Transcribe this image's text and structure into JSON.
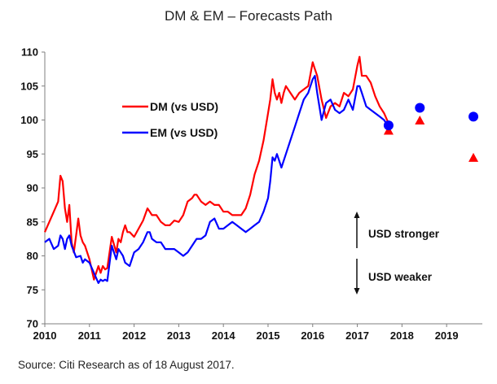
{
  "chart_data": {
    "type": "line",
    "title": "DM & EM – Forecasts Path",
    "xlabel": "",
    "ylabel": "",
    "xlim": [
      2010,
      2019.8
    ],
    "ylim": [
      70,
      110
    ],
    "x_ticks": [
      "2010",
      "2011",
      "2012",
      "2013",
      "2014",
      "2015",
      "2016",
      "2017",
      "2018",
      "2019"
    ],
    "y_ticks": [
      "70",
      "75",
      "80",
      "85",
      "90",
      "95",
      "100",
      "105",
      "110"
    ],
    "grid": false,
    "legend_position": "upper-left",
    "colors": {
      "dm": "#ff0000",
      "em": "#0000ff"
    },
    "series": [
      {
        "name": "DM (vs USD)",
        "color": "#ff0000",
        "x": [
          2010.0,
          2010.1,
          2010.2,
          2010.3,
          2010.35,
          2010.4,
          2010.45,
          2010.5,
          2010.55,
          2010.6,
          2010.65,
          2010.7,
          2010.75,
          2010.8,
          2010.85,
          2010.9,
          2011.0,
          2011.1,
          2011.2,
          2011.25,
          2011.3,
          2011.35,
          2011.4,
          2011.5,
          2011.6,
          2011.65,
          2011.7,
          2011.75,
          2011.8,
          2011.85,
          2011.9,
          2012.0,
          2012.1,
          2012.2,
          2012.3,
          2012.35,
          2012.4,
          2012.5,
          2012.6,
          2012.7,
          2012.8,
          2012.9,
          2013.0,
          2013.1,
          2013.2,
          2013.3,
          2013.35,
          2013.4,
          2013.5,
          2013.6,
          2013.7,
          2013.8,
          2013.9,
          2014.0,
          2014.1,
          2014.2,
          2014.3,
          2014.4,
          2014.5,
          2014.6,
          2014.7,
          2014.8,
          2014.9,
          2015.0,
          2015.05,
          2015.1,
          2015.15,
          2015.2,
          2015.25,
          2015.3,
          2015.35,
          2015.4,
          2015.5,
          2015.6,
          2015.7,
          2015.8,
          2015.9,
          2016.0,
          2016.05,
          2016.1,
          2016.2,
          2016.3,
          2016.4,
          2016.5,
          2016.6,
          2016.7,
          2016.8,
          2016.9,
          2017.0,
          2017.05,
          2017.1,
          2017.2,
          2017.3,
          2017.4,
          2017.5,
          2017.6,
          2017.7
        ],
        "values": [
          83.5,
          85,
          86.5,
          88,
          91.8,
          91,
          87,
          85,
          87.5,
          82,
          80.5,
          83,
          85.5,
          83,
          82,
          81.5,
          79.5,
          76.5,
          78.5,
          77.5,
          78.5,
          78,
          78.2,
          82.8,
          80.5,
          82.5,
          82,
          83.5,
          84.5,
          83.5,
          83.5,
          82.8,
          84,
          85.2,
          87,
          86.5,
          86,
          86,
          85,
          84.5,
          84.5,
          85.2,
          85,
          86,
          88,
          88.5,
          89,
          89,
          88,
          87.5,
          88,
          87.5,
          87.5,
          86.5,
          86.5,
          86,
          86,
          86,
          87,
          89,
          92,
          94,
          97,
          101,
          103,
          106,
          104,
          103,
          104,
          102.5,
          104,
          105,
          104,
          103,
          104,
          104.5,
          105,
          108.5,
          107.5,
          106.5,
          103,
          100.3,
          102,
          102.5,
          102,
          104,
          103.5,
          104.5,
          108,
          109.3,
          106.5,
          106.5,
          105.5,
          103.5,
          102,
          101,
          99.5
        ]
      },
      {
        "name": "EM (vs USD)",
        "color": "#0000ff",
        "x": [
          2010.0,
          2010.1,
          2010.2,
          2010.3,
          2010.35,
          2010.4,
          2010.45,
          2010.5,
          2010.55,
          2010.6,
          2010.7,
          2010.8,
          2010.85,
          2010.9,
          2011.0,
          2011.1,
          2011.2,
          2011.25,
          2011.3,
          2011.35,
          2011.4,
          2011.5,
          2011.55,
          2011.6,
          2011.65,
          2011.7,
          2011.75,
          2011.8,
          2011.9,
          2012.0,
          2012.1,
          2012.2,
          2012.3,
          2012.35,
          2012.4,
          2012.5,
          2012.6,
          2012.7,
          2012.8,
          2012.9,
          2013.0,
          2013.1,
          2013.2,
          2013.3,
          2013.4,
          2013.5,
          2013.6,
          2013.7,
          2013.8,
          2013.9,
          2014.0,
          2014.1,
          2014.2,
          2014.3,
          2014.4,
          2014.5,
          2014.6,
          2014.7,
          2014.8,
          2014.9,
          2015.0,
          2015.05,
          2015.1,
          2015.15,
          2015.2,
          2015.25,
          2015.3,
          2015.4,
          2015.5,
          2015.6,
          2015.7,
          2015.8,
          2015.9,
          2016.0,
          2016.05,
          2016.1,
          2016.2,
          2016.3,
          2016.4,
          2016.5,
          2016.6,
          2016.7,
          2016.8,
          2016.9,
          2017.0,
          2017.05,
          2017.1,
          2017.2,
          2017.3,
          2017.4,
          2017.5,
          2017.6,
          2017.7
        ],
        "values": [
          82,
          82.5,
          81,
          81.5,
          83,
          82.5,
          81,
          82.5,
          83,
          81.5,
          79.8,
          80,
          79,
          79.5,
          79,
          77.5,
          76,
          76.5,
          76.3,
          76.5,
          76.3,
          81.5,
          80.5,
          79.5,
          81,
          80.5,
          80,
          79,
          78.5,
          80.5,
          81,
          82,
          83.5,
          83.5,
          82.5,
          82,
          82,
          81,
          81,
          81,
          80.5,
          80,
          80.5,
          81.5,
          82.5,
          82.5,
          83,
          85,
          85.5,
          84,
          84,
          84.5,
          85,
          84.5,
          84,
          83.5,
          84,
          84.5,
          85,
          86.5,
          88.5,
          91,
          94.5,
          94,
          95,
          94,
          93,
          95,
          97,
          99,
          101,
          103,
          104,
          106,
          106.5,
          104,
          100,
          102.5,
          103,
          101.5,
          101,
          101.5,
          103,
          101.5,
          105,
          105,
          104,
          102,
          101.5,
          101,
          100.5,
          100,
          99
        ]
      }
    ],
    "forecasts": [
      {
        "series": "DM (vs USD)",
        "marker": "triangle",
        "x": [
          2017.7,
          2018.4,
          2019.6
        ],
        "values": [
          98.5,
          100,
          94.5
        ]
      },
      {
        "series": "EM (vs USD)",
        "marker": "circle",
        "x": [
          2017.7,
          2018.4,
          2019.6
        ],
        "values": [
          99.2,
          101.8,
          100.5
        ]
      }
    ],
    "annotations": [
      "USD stronger",
      "USD weaker"
    ]
  },
  "source": "Source: Citi Research as of 18 August 2017."
}
